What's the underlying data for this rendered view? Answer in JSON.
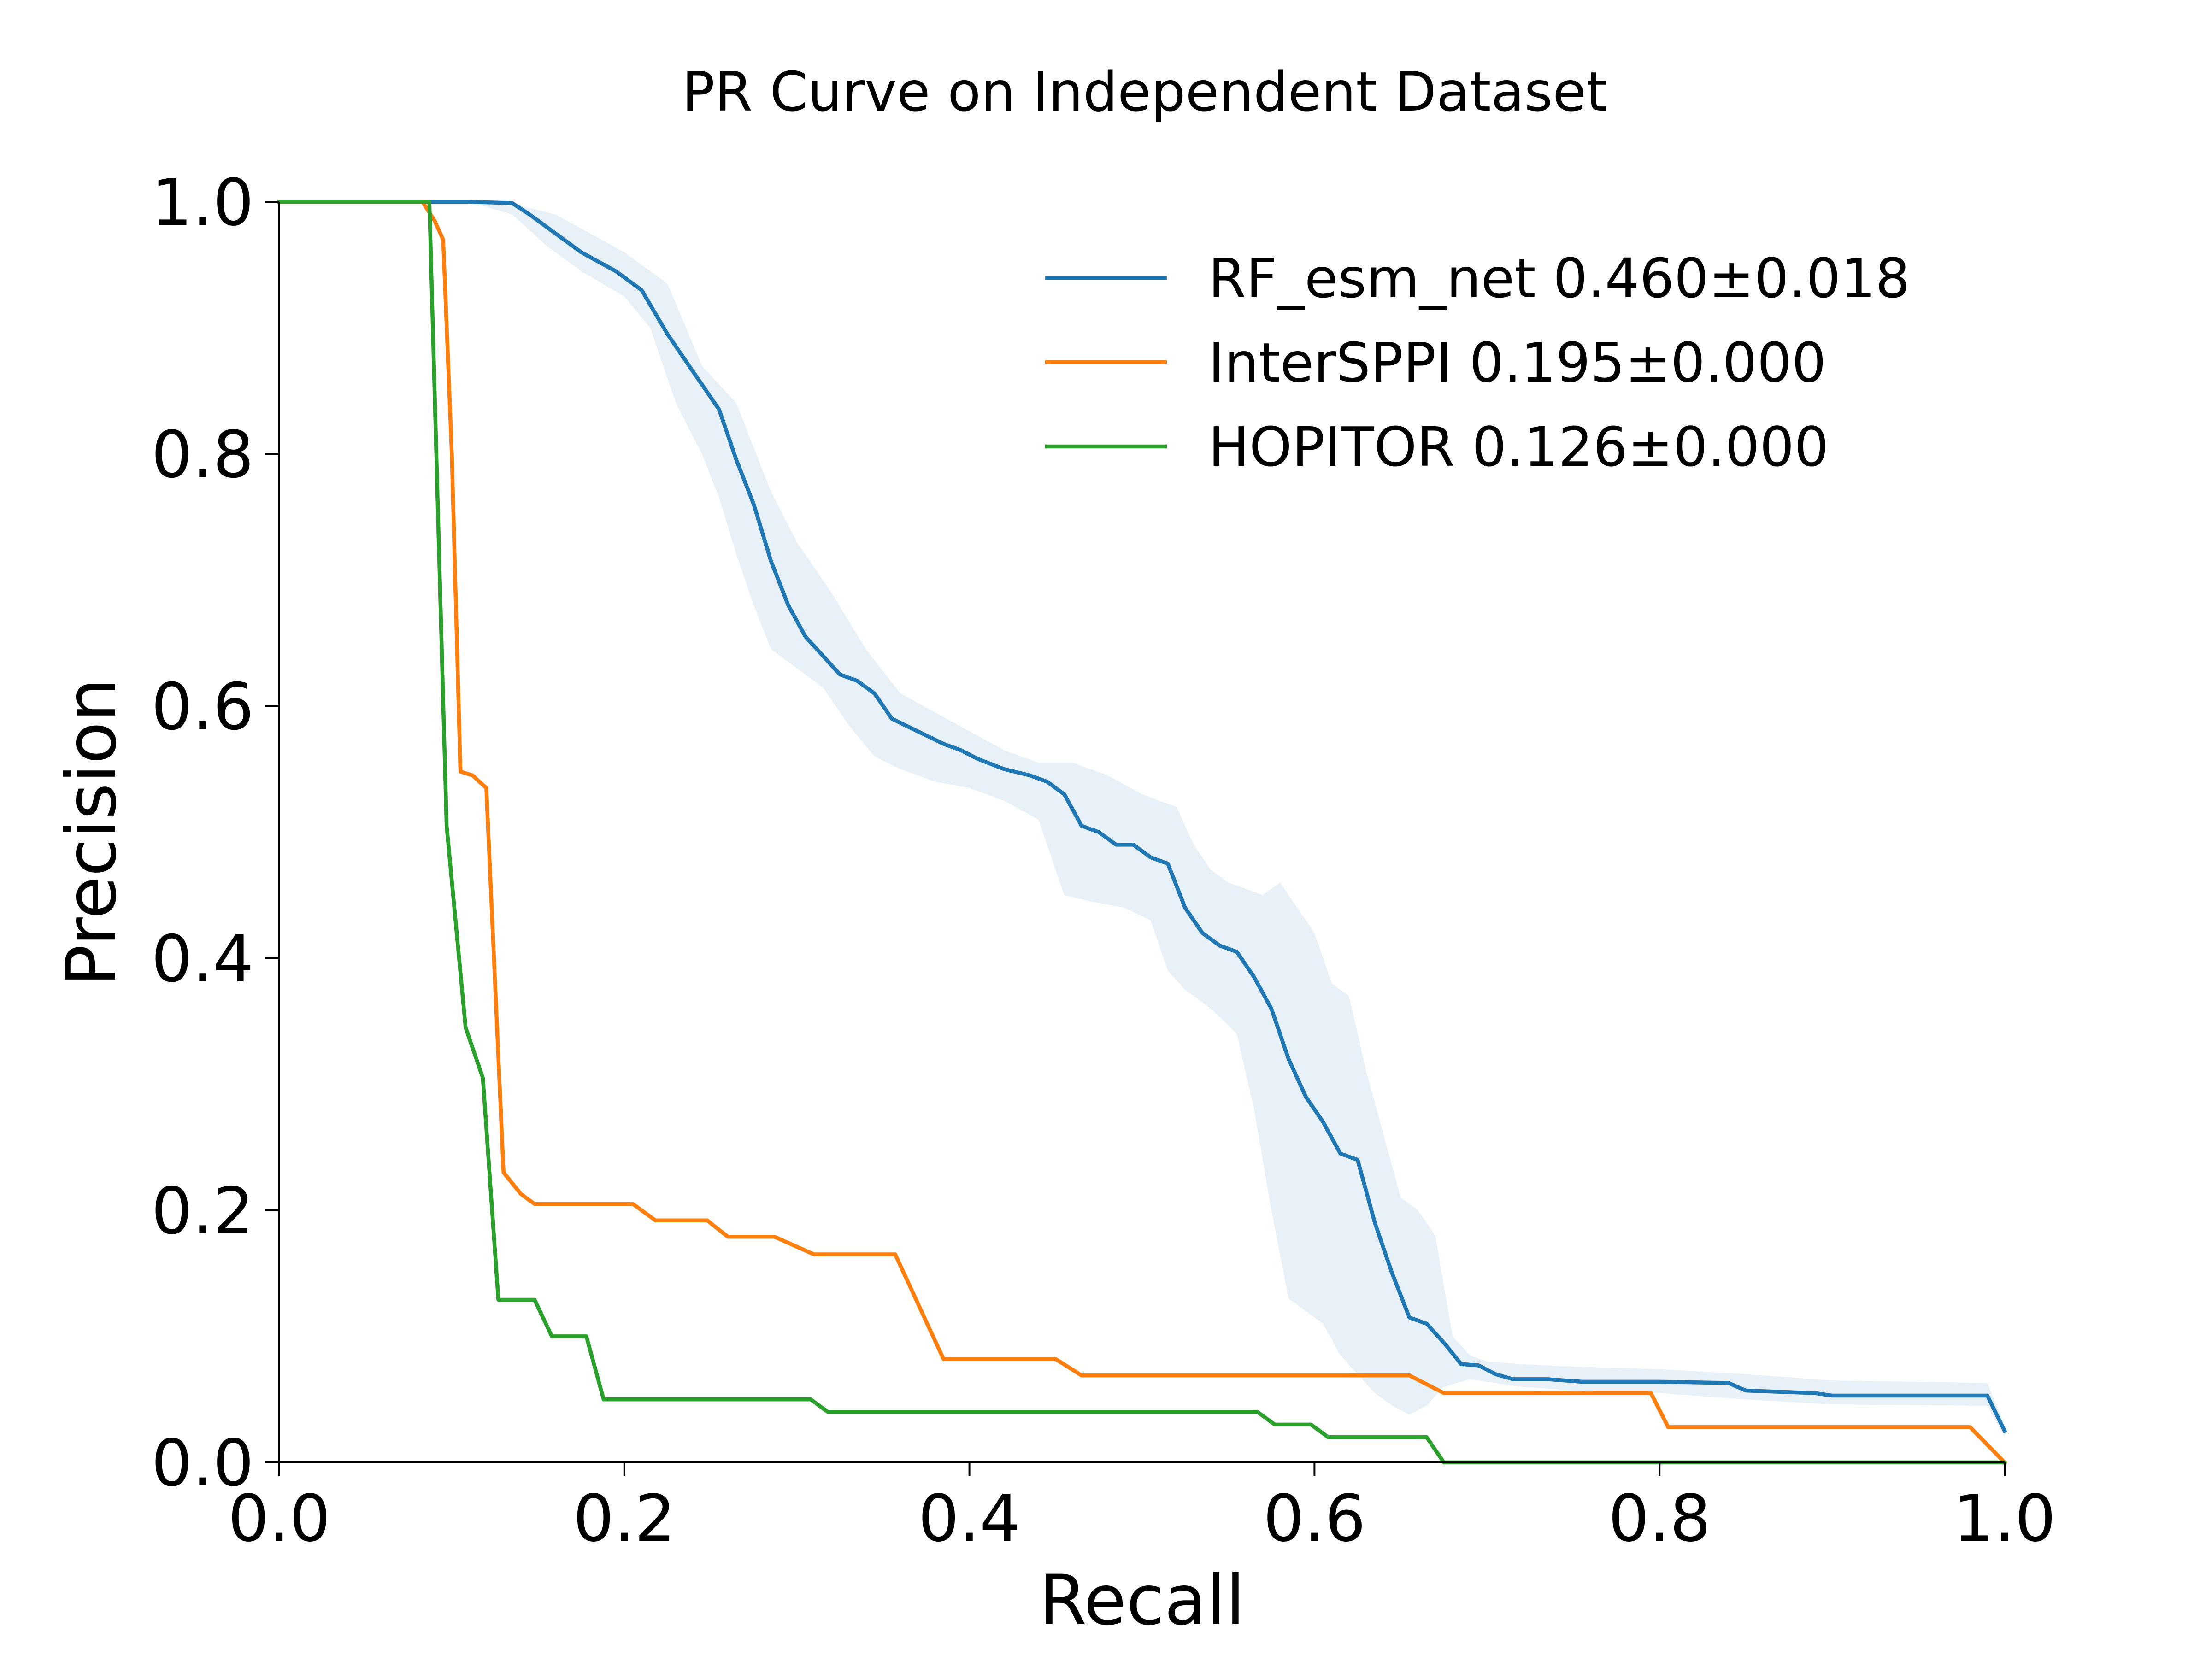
{
  "chart_data": {
    "type": "line",
    "title": "PR Curve on Independent Dataset",
    "xlabel": "Recall",
    "ylabel": "Precision",
    "xlim": [
      0,
      1
    ],
    "ylim": [
      0,
      1
    ],
    "x_ticks": [
      "0.0",
      "0.2",
      "0.4",
      "0.6",
      "0.8",
      "1.0"
    ],
    "y_ticks": [
      "0.0",
      "0.2",
      "0.4",
      "0.6",
      "0.8",
      "1.0"
    ],
    "grid": false,
    "legend_position": "top-right",
    "series": [
      {
        "name": "RF_esm_net 0.460±0.018",
        "color": "#1f77b4",
        "band_color": "#1f77b4",
        "band_opacity": 0.1,
        "points": [
          [
            0,
            1.0
          ],
          [
            0.11,
            1.0
          ],
          [
            0.135,
            0.999
          ],
          [
            0.145,
            0.99
          ],
          [
            0.16,
            0.975
          ],
          [
            0.175,
            0.96
          ],
          [
            0.195,
            0.945
          ],
          [
            0.21,
            0.93
          ],
          [
            0.225,
            0.895
          ],
          [
            0.24,
            0.865
          ],
          [
            0.255,
            0.835
          ],
          [
            0.265,
            0.795
          ],
          [
            0.275,
            0.76
          ],
          [
            0.285,
            0.715
          ],
          [
            0.295,
            0.68
          ],
          [
            0.305,
            0.655
          ],
          [
            0.315,
            0.64
          ],
          [
            0.325,
            0.625
          ],
          [
            0.335,
            0.62
          ],
          [
            0.345,
            0.61
          ],
          [
            0.355,
            0.59
          ],
          [
            0.37,
            0.58
          ],
          [
            0.385,
            0.57
          ],
          [
            0.395,
            0.565
          ],
          [
            0.405,
            0.558
          ],
          [
            0.42,
            0.55
          ],
          [
            0.435,
            0.545
          ],
          [
            0.445,
            0.54
          ],
          [
            0.455,
            0.53
          ],
          [
            0.465,
            0.505
          ],
          [
            0.475,
            0.5
          ],
          [
            0.485,
            0.49
          ],
          [
            0.495,
            0.49
          ],
          [
            0.505,
            0.48
          ],
          [
            0.515,
            0.475
          ],
          [
            0.525,
            0.44
          ],
          [
            0.535,
            0.42
          ],
          [
            0.545,
            0.41
          ],
          [
            0.555,
            0.405
          ],
          [
            0.565,
            0.385
          ],
          [
            0.575,
            0.36
          ],
          [
            0.585,
            0.32
          ],
          [
            0.595,
            0.29
          ],
          [
            0.605,
            0.27
          ],
          [
            0.615,
            0.245
          ],
          [
            0.625,
            0.24
          ],
          [
            0.635,
            0.19
          ],
          [
            0.645,
            0.15
          ],
          [
            0.655,
            0.115
          ],
          [
            0.665,
            0.11
          ],
          [
            0.675,
            0.095
          ],
          [
            0.685,
            0.078
          ],
          [
            0.695,
            0.077
          ],
          [
            0.705,
            0.07
          ],
          [
            0.715,
            0.066
          ],
          [
            0.735,
            0.066
          ],
          [
            0.755,
            0.064
          ],
          [
            0.8,
            0.064
          ],
          [
            0.84,
            0.063
          ],
          [
            0.85,
            0.057
          ],
          [
            0.89,
            0.055
          ],
          [
            0.9,
            0.053
          ],
          [
            0.99,
            0.053
          ],
          [
            1.0,
            0.025
          ]
        ],
        "band_upper": [
          [
            0,
            1.0
          ],
          [
            0.11,
            1.0
          ],
          [
            0.13,
            1.0
          ],
          [
            0.16,
            0.99
          ],
          [
            0.2,
            0.96
          ],
          [
            0.225,
            0.935
          ],
          [
            0.245,
            0.87
          ],
          [
            0.265,
            0.84
          ],
          [
            0.285,
            0.77
          ],
          [
            0.3,
            0.73
          ],
          [
            0.32,
            0.69
          ],
          [
            0.34,
            0.645
          ],
          [
            0.36,
            0.61
          ],
          [
            0.38,
            0.595
          ],
          [
            0.4,
            0.58
          ],
          [
            0.42,
            0.565
          ],
          [
            0.44,
            0.555
          ],
          [
            0.46,
            0.555
          ],
          [
            0.48,
            0.545
          ],
          [
            0.5,
            0.53
          ],
          [
            0.52,
            0.52
          ],
          [
            0.53,
            0.49
          ],
          [
            0.54,
            0.47
          ],
          [
            0.55,
            0.46
          ],
          [
            0.56,
            0.455
          ],
          [
            0.57,
            0.45
          ],
          [
            0.58,
            0.46
          ],
          [
            0.59,
            0.44
          ],
          [
            0.6,
            0.42
          ],
          [
            0.61,
            0.38
          ],
          [
            0.62,
            0.37
          ],
          [
            0.63,
            0.31
          ],
          [
            0.64,
            0.26
          ],
          [
            0.65,
            0.21
          ],
          [
            0.66,
            0.2
          ],
          [
            0.67,
            0.18
          ],
          [
            0.68,
            0.1
          ],
          [
            0.69,
            0.085
          ],
          [
            0.7,
            0.08
          ],
          [
            0.72,
            0.078
          ],
          [
            0.75,
            0.076
          ],
          [
            0.8,
            0.074
          ],
          [
            0.85,
            0.07
          ],
          [
            0.9,
            0.065
          ],
          [
            0.99,
            0.063
          ],
          [
            1.0,
            0.03
          ]
        ],
        "band_lower": [
          [
            0,
            1.0
          ],
          [
            0.11,
            1.0
          ],
          [
            0.135,
            0.99
          ],
          [
            0.155,
            0.965
          ],
          [
            0.175,
            0.945
          ],
          [
            0.2,
            0.925
          ],
          [
            0.215,
            0.9
          ],
          [
            0.23,
            0.84
          ],
          [
            0.245,
            0.8
          ],
          [
            0.255,
            0.765
          ],
          [
            0.265,
            0.72
          ],
          [
            0.275,
            0.68
          ],
          [
            0.285,
            0.645
          ],
          [
            0.3,
            0.63
          ],
          [
            0.315,
            0.615
          ],
          [
            0.33,
            0.585
          ],
          [
            0.345,
            0.56
          ],
          [
            0.36,
            0.55
          ],
          [
            0.38,
            0.54
          ],
          [
            0.4,
            0.535
          ],
          [
            0.42,
            0.525
          ],
          [
            0.44,
            0.51
          ],
          [
            0.455,
            0.45
          ],
          [
            0.47,
            0.445
          ],
          [
            0.49,
            0.44
          ],
          [
            0.505,
            0.43
          ],
          [
            0.515,
            0.39
          ],
          [
            0.525,
            0.375
          ],
          [
            0.54,
            0.36
          ],
          [
            0.555,
            0.34
          ],
          [
            0.565,
            0.28
          ],
          [
            0.575,
            0.2
          ],
          [
            0.585,
            0.13
          ],
          [
            0.595,
            0.12
          ],
          [
            0.605,
            0.11
          ],
          [
            0.615,
            0.085
          ],
          [
            0.625,
            0.07
          ],
          [
            0.635,
            0.055
          ],
          [
            0.645,
            0.045
          ],
          [
            0.655,
            0.038
          ],
          [
            0.665,
            0.045
          ],
          [
            0.675,
            0.06
          ],
          [
            0.69,
            0.066
          ],
          [
            0.72,
            0.06
          ],
          [
            0.75,
            0.057
          ],
          [
            0.8,
            0.055
          ],
          [
            0.85,
            0.05
          ],
          [
            0.9,
            0.046
          ],
          [
            0.99,
            0.045
          ],
          [
            1.0,
            0.02
          ]
        ]
      },
      {
        "name": "InterSPPI 0.195±0.000",
        "color": "#ff7f0e",
        "points": [
          [
            0,
            1.0
          ],
          [
            0.083,
            1.0
          ],
          [
            0.09,
            0.985
          ],
          [
            0.095,
            0.97
          ],
          [
            0.1,
            0.8
          ],
          [
            0.105,
            0.548
          ],
          [
            0.112,
            0.545
          ],
          [
            0.12,
            0.535
          ],
          [
            0.13,
            0.23
          ],
          [
            0.14,
            0.213
          ],
          [
            0.148,
            0.205
          ],
          [
            0.205,
            0.205
          ],
          [
            0.218,
            0.192
          ],
          [
            0.248,
            0.192
          ],
          [
            0.26,
            0.179
          ],
          [
            0.287,
            0.179
          ],
          [
            0.31,
            0.165
          ],
          [
            0.357,
            0.165
          ],
          [
            0.385,
            0.082
          ],
          [
            0.45,
            0.082
          ],
          [
            0.465,
            0.069
          ],
          [
            0.655,
            0.069
          ],
          [
            0.675,
            0.055
          ],
          [
            0.795,
            0.055
          ],
          [
            0.805,
            0.028
          ],
          [
            0.98,
            0.028
          ],
          [
            1.0,
            0.0
          ]
        ]
      },
      {
        "name": "HOPITOR 0.126±0.000",
        "color": "#2ca02c",
        "points": [
          [
            0,
            1.0
          ],
          [
            0.087,
            1.0
          ],
          [
            0.097,
            0.505
          ],
          [
            0.108,
            0.345
          ],
          [
            0.118,
            0.305
          ],
          [
            0.127,
            0.129
          ],
          [
            0.148,
            0.129
          ],
          [
            0.158,
            0.1
          ],
          [
            0.178,
            0.1
          ],
          [
            0.188,
            0.05
          ],
          [
            0.308,
            0.05
          ],
          [
            0.318,
            0.04
          ],
          [
            0.567,
            0.04
          ],
          [
            0.577,
            0.03
          ],
          [
            0.598,
            0.03
          ],
          [
            0.608,
            0.02
          ],
          [
            0.665,
            0.02
          ],
          [
            0.675,
            0.0
          ],
          [
            1.0,
            0.0
          ]
        ]
      }
    ]
  }
}
